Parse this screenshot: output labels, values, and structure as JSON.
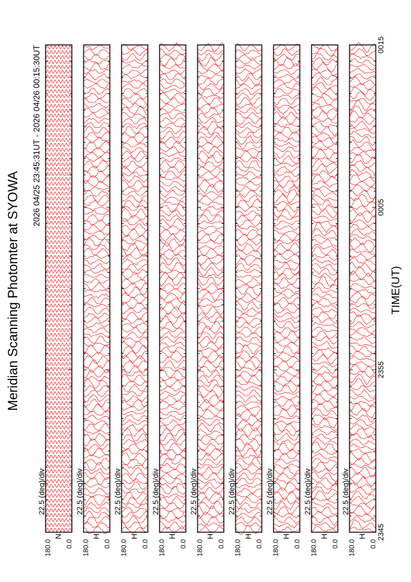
{
  "chart_data": {
    "type": "scan-panels",
    "title": "Meridian Scanning Photomter at SYOWA",
    "subtitle": "2026 04/25 23:45:31UT - 2026 04/26 00:15:30UT",
    "xlabel": "TIME(UT)",
    "xticks": [
      "2345",
      "2355",
      "0005",
      "0015"
    ],
    "scale_label": "22.5 (deg)/div",
    "ytick_top": "180.0",
    "ytick_bottom": "0.0",
    "trace_color": "#ff0000",
    "panels": [
      {
        "label": "N"
      },
      {
        "label": "H"
      },
      {
        "label": "H"
      },
      {
        "label": "H"
      },
      {
        "label": "H"
      },
      {
        "label": "H"
      },
      {
        "label": "H"
      },
      {
        "label": "H"
      },
      {
        "label": "H"
      }
    ]
  }
}
